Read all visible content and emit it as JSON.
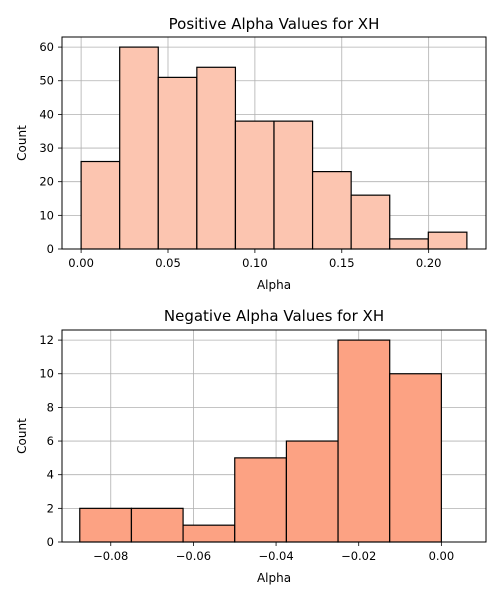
{
  "chart_data": [
    {
      "type": "bar",
      "title": "Positive Alpha Values for XH",
      "xlabel": "Alpha",
      "ylabel": "Count",
      "bin_edges": [
        0.0,
        0.0222,
        0.0444,
        0.0666,
        0.0888,
        0.111,
        0.1332,
        0.1554,
        0.1776,
        0.1998,
        0.222
      ],
      "values": [
        26,
        60,
        51,
        54,
        38,
        38,
        23,
        16,
        3,
        5
      ],
      "xlim": [
        -0.011,
        0.233
      ],
      "ylim": [
        0,
        63
      ],
      "xticks": [
        0.0,
        0.05,
        0.1,
        0.15,
        0.2
      ],
      "xtick_labels": [
        "0.00",
        "0.05",
        "0.10",
        "0.15",
        "0.20"
      ],
      "yticks": [
        0,
        10,
        20,
        30,
        40,
        50,
        60
      ],
      "ytick_labels": [
        "0",
        "10",
        "20",
        "30",
        "40",
        "50",
        "60"
      ],
      "grid": true,
      "bar_color": "#fcc5b0"
    },
    {
      "type": "bar",
      "title": "Negative Alpha Values for XH",
      "xlabel": "Alpha",
      "ylabel": "Count",
      "bin_edges": [
        -0.0875,
        -0.075,
        -0.0625,
        -0.05,
        -0.0375,
        -0.025,
        -0.0125,
        0.0
      ],
      "values": [
        2,
        2,
        1,
        5,
        6,
        12,
        10
      ],
      "xlim": [
        -0.0918,
        0.0108
      ],
      "ylim": [
        0,
        12.6
      ],
      "xticks": [
        -0.08,
        -0.06,
        -0.04,
        -0.02,
        0.0
      ],
      "xtick_labels": [
        "−0.08",
        "−0.06",
        "−0.04",
        "−0.02",
        "0.00"
      ],
      "yticks": [
        0,
        2,
        4,
        6,
        8,
        10,
        12
      ],
      "ytick_labels": [
        "0",
        "2",
        "4",
        "6",
        "8",
        "10",
        "12"
      ],
      "grid": true,
      "bar_color": "#fca283"
    }
  ]
}
